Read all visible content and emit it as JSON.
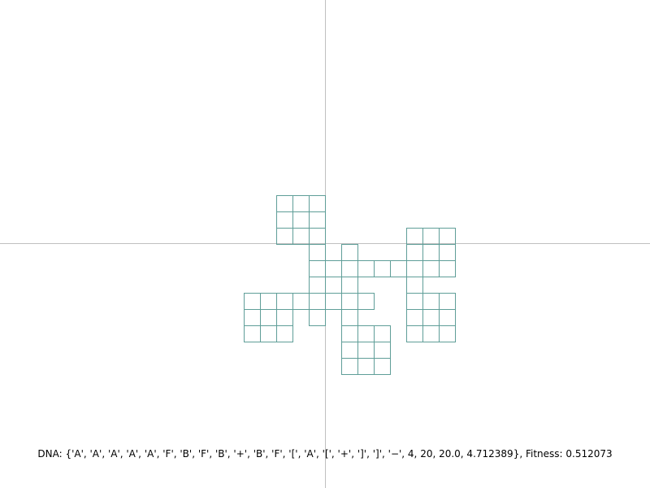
{
  "status": {
    "dna_label": "DNA: ",
    "dna_value": "{'A', 'A', 'A', 'A', 'A', 'F', 'B', 'F', 'B', '+', 'B', 'F', '[', 'A', '[', '+', ']', ']', '−', 4, 20, 20.0, 4.712389}",
    "fitness_label": ", Fitness: ",
    "fitness_value": "0.512073"
  },
  "colors": {
    "background": "#ffffff",
    "axis": "#c0c0c0",
    "cell_stroke": "#5f9e98",
    "text": "#000000"
  }
}
